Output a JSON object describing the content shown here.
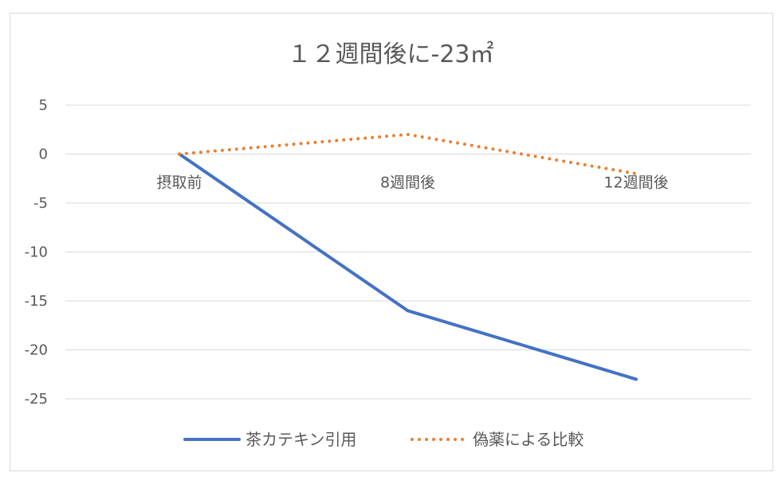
{
  "chart_data": {
    "type": "line",
    "title": "１２週間後に-23㎡",
    "categories": [
      "摂取前",
      "8週間後",
      "12週間後"
    ],
    "ylim": [
      -25,
      5
    ],
    "yticks": [
      5,
      0,
      -5,
      -10,
      -15,
      -20,
      -25
    ],
    "grid": true,
    "legend_position": "bottom",
    "series": [
      {
        "name": "茶カテキン引用",
        "values": [
          0,
          -16,
          -23
        ],
        "color": "#4472c4",
        "style": "solid"
      },
      {
        "name": "偽薬による比較",
        "values": [
          0,
          2,
          -2
        ],
        "color": "#ed7d31",
        "style": "dotted"
      }
    ]
  }
}
